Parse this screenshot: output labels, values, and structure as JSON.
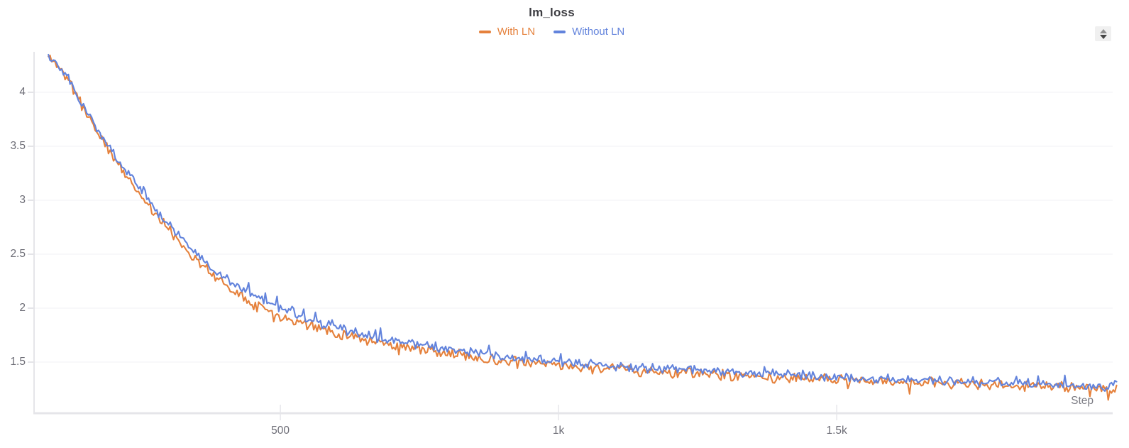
{
  "header": {
    "title": "lm_loss"
  },
  "legend": {
    "items": [
      {
        "label": "With LN",
        "color": "#e5813c"
      },
      {
        "label": "Without LN",
        "color": "#6283dc"
      }
    ]
  },
  "axes": {
    "x_label": "Step"
  },
  "controls": {
    "spinner": {
      "up_icon": "chevron-up-icon",
      "down_icon": "chevron-down-icon"
    }
  },
  "colors": {
    "title_text": "#3c3c41",
    "tick_text": "#6e6e77",
    "axis_line": "#e5e5e9",
    "grid_line": "#f1f1f4",
    "tick_stub": "#dcdce1"
  },
  "chart_data": {
    "type": "line",
    "title": "lm_loss",
    "xlabel": "Step",
    "ylabel": "",
    "legend_position": "top-center",
    "grid": {
      "y": true,
      "x": false
    },
    "x_axis": {
      "min": 56,
      "max": 1996,
      "ticks": [
        {
          "value": 500,
          "label": "500"
        },
        {
          "value": 1000,
          "label": "1k"
        },
        {
          "value": 1500,
          "label": "1.5k"
        }
      ]
    },
    "y_axis": {
      "min": 1.033,
      "max": 4.375,
      "ticks": [
        {
          "value": 1.5,
          "label": "1.5"
        },
        {
          "value": 2,
          "label": "2"
        },
        {
          "value": 2.5,
          "label": "2.5"
        },
        {
          "value": 3,
          "label": "3"
        },
        {
          "value": 3.5,
          "label": "3.5"
        },
        {
          "value": 4,
          "label": "4"
        }
      ]
    },
    "series": [
      {
        "name": "With LN",
        "color": "#e5813c",
        "start_step": 83,
        "end_step": 2003,
        "sample_interval": 3,
        "noise": {
          "amplitude": 0.055,
          "spike_probability": 0.06,
          "spike_amplitude": 0.07,
          "spike_direction": "down"
        },
        "trend": [
          [
            83,
            4.33
          ],
          [
            100,
            4.26
          ],
          [
            125,
            4.06
          ],
          [
            150,
            3.83
          ],
          [
            175,
            3.6
          ],
          [
            200,
            3.4
          ],
          [
            225,
            3.21
          ],
          [
            250,
            3.04
          ],
          [
            275,
            2.88
          ],
          [
            300,
            2.72
          ],
          [
            325,
            2.58
          ],
          [
            350,
            2.45
          ],
          [
            375,
            2.33
          ],
          [
            400,
            2.22
          ],
          [
            430,
            2.12
          ],
          [
            460,
            2.03
          ],
          [
            500,
            1.93
          ],
          [
            540,
            1.86
          ],
          [
            580,
            1.8
          ],
          [
            620,
            1.75
          ],
          [
            660,
            1.7
          ],
          [
            700,
            1.66
          ],
          [
            750,
            1.62
          ],
          [
            800,
            1.58
          ],
          [
            850,
            1.55
          ],
          [
            900,
            1.52
          ],
          [
            950,
            1.49
          ],
          [
            1000,
            1.47
          ],
          [
            1060,
            1.45
          ],
          [
            1120,
            1.43
          ],
          [
            1180,
            1.41
          ],
          [
            1240,
            1.4
          ],
          [
            1300,
            1.38
          ],
          [
            1360,
            1.37
          ],
          [
            1420,
            1.35
          ],
          [
            1480,
            1.34
          ],
          [
            1540,
            1.33
          ],
          [
            1600,
            1.32
          ],
          [
            1660,
            1.31
          ],
          [
            1720,
            1.3
          ],
          [
            1780,
            1.29
          ],
          [
            1840,
            1.28
          ],
          [
            1900,
            1.27
          ],
          [
            1950,
            1.26
          ],
          [
            2003,
            1.25
          ]
        ]
      },
      {
        "name": "Without LN",
        "color": "#6283dc",
        "start_step": 83,
        "end_step": 2003,
        "sample_interval": 3,
        "noise": {
          "amplitude": 0.05,
          "spike_probability": 0.06,
          "spike_amplitude": 0.08,
          "spike_direction": "up"
        },
        "trend": [
          [
            83,
            4.33
          ],
          [
            100,
            4.27
          ],
          [
            125,
            4.07
          ],
          [
            150,
            3.85
          ],
          [
            175,
            3.62
          ],
          [
            200,
            3.43
          ],
          [
            225,
            3.25
          ],
          [
            250,
            3.08
          ],
          [
            275,
            2.92
          ],
          [
            300,
            2.77
          ],
          [
            325,
            2.63
          ],
          [
            350,
            2.5
          ],
          [
            375,
            2.38
          ],
          [
            400,
            2.28
          ],
          [
            430,
            2.18
          ],
          [
            460,
            2.09
          ],
          [
            500,
            1.99
          ],
          [
            540,
            1.91
          ],
          [
            580,
            1.85
          ],
          [
            620,
            1.79
          ],
          [
            660,
            1.74
          ],
          [
            700,
            1.7
          ],
          [
            750,
            1.66
          ],
          [
            800,
            1.62
          ],
          [
            850,
            1.59
          ],
          [
            900,
            1.56
          ],
          [
            950,
            1.53
          ],
          [
            1000,
            1.51
          ],
          [
            1060,
            1.48
          ],
          [
            1120,
            1.46
          ],
          [
            1180,
            1.44
          ],
          [
            1240,
            1.43
          ],
          [
            1300,
            1.41
          ],
          [
            1360,
            1.4
          ],
          [
            1420,
            1.38
          ],
          [
            1480,
            1.37
          ],
          [
            1540,
            1.35
          ],
          [
            1600,
            1.34
          ],
          [
            1660,
            1.33
          ],
          [
            1720,
            1.32
          ],
          [
            1780,
            1.31
          ],
          [
            1840,
            1.3
          ],
          [
            1900,
            1.29
          ],
          [
            1950,
            1.28
          ],
          [
            2003,
            1.27
          ]
        ]
      }
    ]
  }
}
